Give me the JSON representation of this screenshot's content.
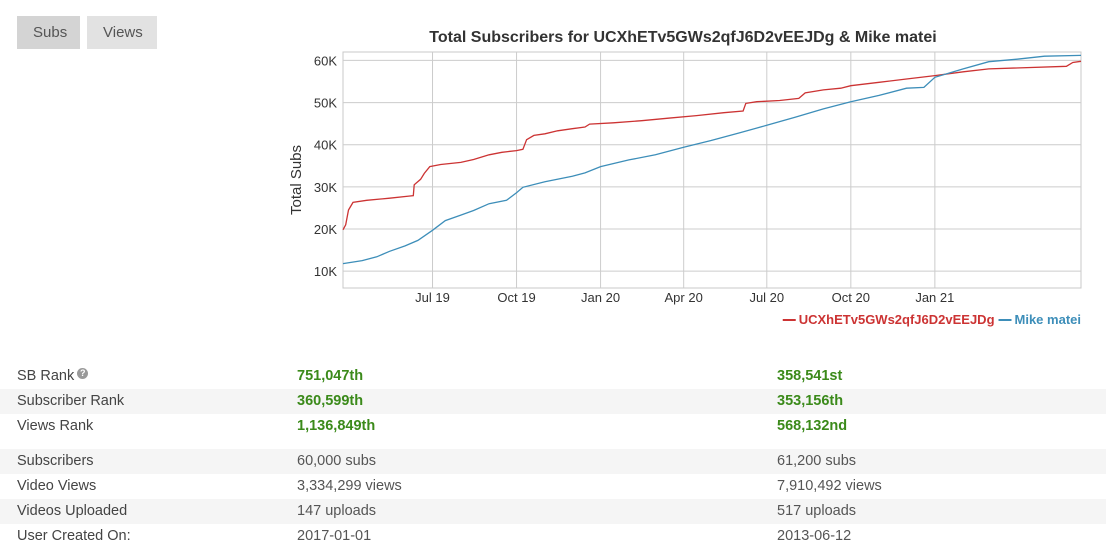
{
  "tabs": [
    {
      "label": "Subs",
      "active": true
    },
    {
      "label": "Views",
      "active": false
    }
  ],
  "chart_data": {
    "type": "line",
    "title": "Total Subscribers for UCXhETv5GWs2qfJ6D2vEEJDg & Mike matei",
    "xlabel": "",
    "ylabel": "Total Subs",
    "ylim": [
      6000,
      62000
    ],
    "yticks": [
      10000,
      20000,
      30000,
      40000,
      50000,
      60000
    ],
    "ytick_labels": [
      "10K",
      "20K",
      "30K",
      "40K",
      "50K",
      "60K"
    ],
    "xlim": [
      "2019-03-25",
      "2021-06-10"
    ],
    "xticks": [
      "2019-07-01",
      "2019-10-01",
      "2020-01-01",
      "2020-04-01",
      "2020-07-01",
      "2020-10-01",
      "2021-01-01"
    ],
    "xtick_labels": [
      "Jul 19",
      "Oct 19",
      "Jan 20",
      "Apr 20",
      "Jul 20",
      "Oct 20",
      "Jan 21"
    ],
    "legend": "bottom-right",
    "series": [
      {
        "name": "UCXhETv5GWs2qfJ6D2vEEJDg",
        "color": "#cc3333",
        "points": [
          [
            "2019-03-25",
            19800
          ],
          [
            "2019-03-28",
            21000
          ],
          [
            "2019-03-31",
            24500
          ],
          [
            "2019-04-05",
            26300
          ],
          [
            "2019-04-20",
            26800
          ],
          [
            "2019-05-15",
            27300
          ],
          [
            "2019-06-05",
            27800
          ],
          [
            "2019-06-10",
            27900
          ],
          [
            "2019-06-11",
            30500
          ],
          [
            "2019-06-18",
            31800
          ],
          [
            "2019-06-22",
            33200
          ],
          [
            "2019-06-28",
            34800
          ],
          [
            "2019-07-10",
            35300
          ],
          [
            "2019-08-01",
            35800
          ],
          [
            "2019-08-15",
            36500
          ],
          [
            "2019-09-01",
            37600
          ],
          [
            "2019-09-15",
            38200
          ],
          [
            "2019-10-01",
            38600
          ],
          [
            "2019-10-08",
            38900
          ],
          [
            "2019-10-12",
            41200
          ],
          [
            "2019-10-20",
            42200
          ],
          [
            "2019-11-01",
            42600
          ],
          [
            "2019-11-15",
            43300
          ],
          [
            "2019-12-01",
            43800
          ],
          [
            "2019-12-15",
            44200
          ],
          [
            "2019-12-20",
            44900
          ],
          [
            "2020-01-15",
            45200
          ],
          [
            "2020-02-15",
            45700
          ],
          [
            "2020-03-15",
            46300
          ],
          [
            "2020-04-15",
            46900
          ],
          [
            "2020-05-15",
            47600
          ],
          [
            "2020-06-05",
            48000
          ],
          [
            "2020-06-08",
            49800
          ],
          [
            "2020-06-20",
            50200
          ],
          [
            "2020-07-15",
            50500
          ],
          [
            "2020-08-05",
            51000
          ],
          [
            "2020-08-12",
            52300
          ],
          [
            "2020-09-01",
            53000
          ],
          [
            "2020-09-20",
            53400
          ],
          [
            "2020-10-01",
            54000
          ],
          [
            "2020-11-01",
            54800
          ],
          [
            "2020-12-01",
            55600
          ],
          [
            "2021-01-01",
            56400
          ],
          [
            "2021-02-01",
            57300
          ],
          [
            "2021-03-01",
            58000
          ],
          [
            "2021-05-25",
            58600
          ],
          [
            "2021-06-01",
            59500
          ],
          [
            "2021-06-10",
            59800
          ]
        ]
      },
      {
        "name": "Mike matei",
        "color": "#3d8eb9",
        "points": [
          [
            "2019-03-25",
            11800
          ],
          [
            "2019-04-15",
            12500
          ],
          [
            "2019-05-01",
            13400
          ],
          [
            "2019-05-15",
            14700
          ],
          [
            "2019-06-01",
            16000
          ],
          [
            "2019-06-15",
            17300
          ],
          [
            "2019-07-01",
            19700
          ],
          [
            "2019-07-15",
            22000
          ],
          [
            "2019-08-01",
            23300
          ],
          [
            "2019-08-15",
            24400
          ],
          [
            "2019-09-01",
            26000
          ],
          [
            "2019-09-20",
            26800
          ],
          [
            "2019-10-01",
            28600
          ],
          [
            "2019-10-08",
            29900
          ],
          [
            "2019-11-01",
            31200
          ],
          [
            "2019-12-01",
            32500
          ],
          [
            "2019-12-15",
            33300
          ],
          [
            "2020-01-01",
            34800
          ],
          [
            "2020-02-01",
            36400
          ],
          [
            "2020-03-01",
            37600
          ],
          [
            "2020-04-01",
            39400
          ],
          [
            "2020-05-01",
            41000
          ],
          [
            "2020-06-01",
            42800
          ],
          [
            "2020-07-01",
            44600
          ],
          [
            "2020-08-01",
            46500
          ],
          [
            "2020-09-01",
            48500
          ],
          [
            "2020-10-01",
            50200
          ],
          [
            "2020-11-01",
            51700
          ],
          [
            "2020-12-01",
            53400
          ],
          [
            "2020-12-20",
            53600
          ],
          [
            "2021-01-01",
            56000
          ],
          [
            "2021-02-01",
            58000
          ],
          [
            "2021-03-01",
            59700
          ],
          [
            "2021-04-01",
            60300
          ],
          [
            "2021-05-01",
            61000
          ],
          [
            "2021-06-10",
            61200
          ]
        ]
      }
    ]
  },
  "stats": {
    "rank_rows": [
      {
        "label": "SB Rank",
        "help": "?",
        "v1": "751,047th",
        "v2": "358,541st"
      },
      {
        "label": "Subscriber Rank",
        "v1": "360,599th",
        "v2": "353,156th"
      },
      {
        "label": "Views Rank",
        "v1": "1,136,849th",
        "v2": "568,132nd"
      }
    ],
    "info_rows": [
      {
        "label": "Subscribers",
        "v1": "60,000 subs",
        "v2": "61,200 subs"
      },
      {
        "label": "Video Views",
        "v1": "3,334,299 views",
        "v2": "7,910,492 views"
      },
      {
        "label": "Videos Uploaded",
        "v1": "147 uploads",
        "v2": "517 uploads"
      },
      {
        "label": "User Created On:",
        "v1": "2017-01-01",
        "v2": "2013-06-12"
      }
    ]
  }
}
